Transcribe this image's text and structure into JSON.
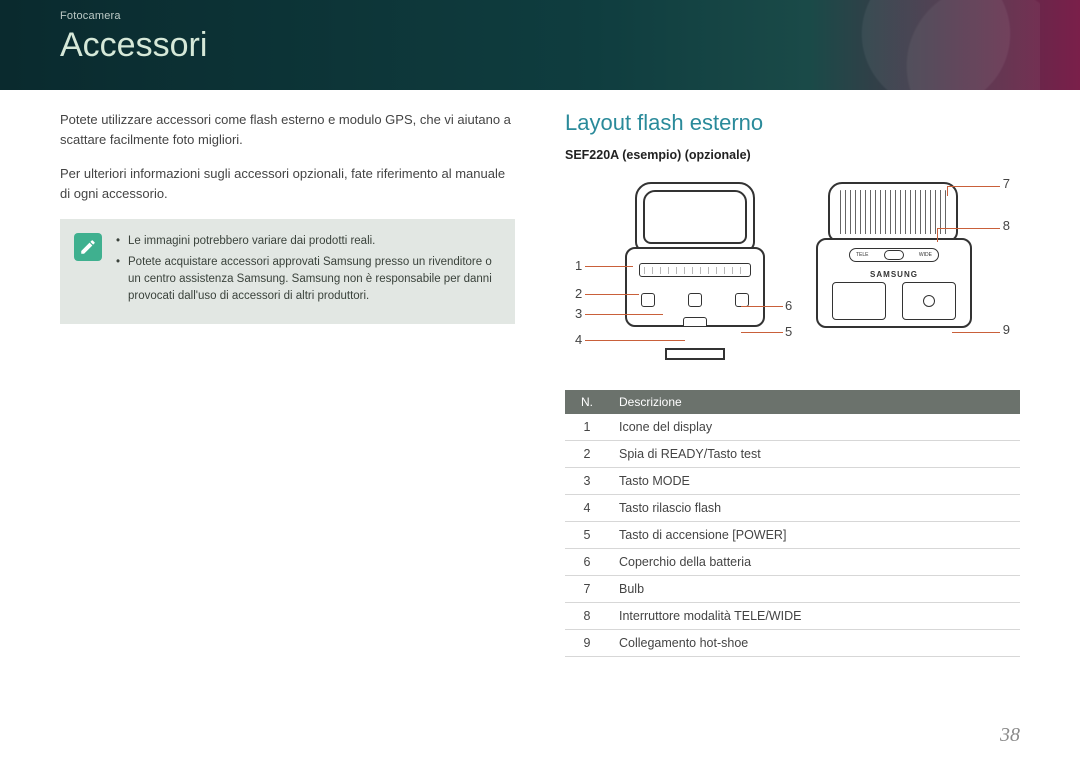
{
  "breadcrumb": "Fotocamera",
  "title": "Accessori",
  "page_number": "38",
  "colors": {
    "title": "#d6e8d8",
    "subhead": "#2a8a9a",
    "lead_line": "#c9603a",
    "note_bg": "#e2e7e3",
    "note_icon_bg": "#3fb08f",
    "table_header_bg": "#6b726c"
  },
  "left_column": {
    "para1": "Potete utilizzare accessori come flash esterno e modulo GPS, che vi aiutano a scattare facilmente foto migliori.",
    "para2": "Per ulteriori informazioni sugli accessori opzionali, fate riferimento al manuale di ogni accessorio.",
    "note": {
      "bullets": [
        "Le immagini potrebbero variare dai prodotti reali.",
        "Potete acquistare accessori approvati Samsung presso un rivenditore o un centro assistenza Samsung. Samsung non è responsabile per danni provocati dall'uso di accessori di altri produttori."
      ]
    }
  },
  "right_column": {
    "subhead": "Layout flash esterno",
    "model_label": "SEF220A (esempio) (opzionale)",
    "diagram_brand": "SAMSUNG",
    "tele_label": "TELE",
    "wide_label": "WIDE",
    "callouts": {
      "c1": "1",
      "c2": "2",
      "c3": "3",
      "c4": "4",
      "c5": "5",
      "c6": "6",
      "c7": "7",
      "c8": "8",
      "c9": "9"
    },
    "table": {
      "head_n": "N.",
      "head_desc": "Descrizione",
      "rows": [
        {
          "n": "1",
          "d": "Icone del display"
        },
        {
          "n": "2",
          "d": "Spia di READY/Tasto test"
        },
        {
          "n": "3",
          "d": "Tasto MODE"
        },
        {
          "n": "4",
          "d": "Tasto rilascio flash"
        },
        {
          "n": "5",
          "d": "Tasto di accensione [POWER]"
        },
        {
          "n": "6",
          "d": "Coperchio della batteria"
        },
        {
          "n": "7",
          "d": "Bulb"
        },
        {
          "n": "8",
          "d": "Interruttore modalità TELE/WIDE"
        },
        {
          "n": "9",
          "d": "Collegamento hot-shoe"
        }
      ]
    }
  }
}
